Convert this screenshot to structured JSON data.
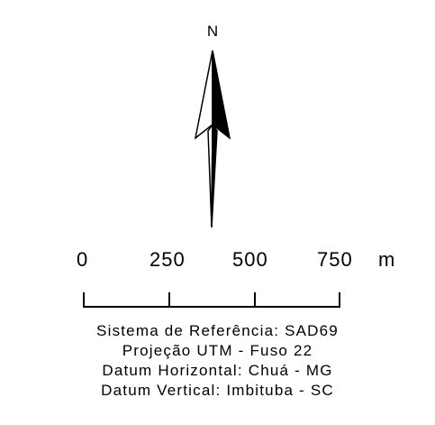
{
  "north": {
    "label": "N",
    "icon": "north-arrow-icon"
  },
  "scale": {
    "ticks": [
      "0",
      "250",
      "500",
      "750"
    ],
    "unit": "m"
  },
  "legend": {
    "lines": [
      "Sistema de Referência: SAD69",
      "Projeção UTM - Fuso 22",
      "Datum Horizontal: Chuá - MG",
      "Datum Vertical: Imbituba - SC"
    ]
  },
  "colors": {
    "ink": "#000000",
    "background": "#ffffff"
  }
}
